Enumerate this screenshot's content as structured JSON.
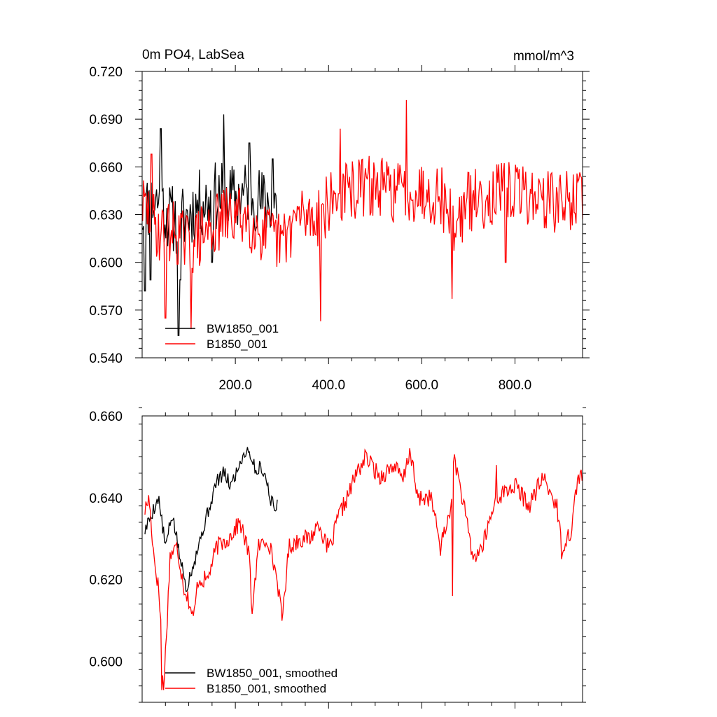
{
  "chart_data": [
    {
      "type": "line",
      "title": "0m PO4, LabSea",
      "units": "mmol/m^3",
      "xlim": [
        0,
        945
      ],
      "ylim": [
        0.54,
        0.72
      ],
      "x_ticks": [
        200,
        400,
        600,
        800
      ],
      "x_tick_labels": [
        "200.0",
        "400.0",
        "600.0",
        "800.0"
      ],
      "y_ticks": [
        0.54,
        0.57,
        0.6,
        0.63,
        0.66,
        0.69,
        0.72
      ],
      "y_tick_labels": [
        "0.540",
        "0.570",
        "0.600",
        "0.630",
        "0.660",
        "0.690",
        "0.720"
      ],
      "grid": false,
      "legend_position": "bottom-left",
      "series": [
        {
          "name": "BW1850_001",
          "color": "#000000",
          "generator": {
            "x_start": 1,
            "x_end": 290,
            "step": 2,
            "seed": 11,
            "noise": 0.022
          },
          "anchors": [
            [
              1,
              0.632
            ],
            [
              30,
              0.64
            ],
            [
              60,
              0.628
            ],
            [
              80,
              0.625
            ],
            [
              120,
              0.636
            ],
            [
              160,
              0.642
            ],
            [
              200,
              0.64
            ],
            [
              230,
              0.645
            ],
            [
              260,
              0.637
            ],
            [
              290,
              0.638
            ]
          ],
          "spikes": [
            [
              6,
              0.582
            ],
            [
              18,
              0.589
            ],
            [
              40,
              0.684
            ],
            [
              78,
              0.554
            ],
            [
              82,
              0.589
            ],
            [
              175,
              0.693
            ],
            [
              150,
              0.6
            ],
            [
              230,
              0.675
            ],
            [
              280,
              0.665
            ]
          ]
        },
        {
          "name": "B1850_001",
          "color": "#ff0000",
          "generator": {
            "x_start": 1,
            "x_end": 945,
            "step": 2,
            "seed": 29,
            "noise": 0.02
          },
          "anchors": [
            [
              1,
              0.636
            ],
            [
              15,
              0.63
            ],
            [
              40,
              0.618
            ],
            [
              70,
              0.62
            ],
            [
              100,
              0.61
            ],
            [
              140,
              0.62
            ],
            [
              180,
              0.628
            ],
            [
              220,
              0.63
            ],
            [
              260,
              0.618
            ],
            [
              300,
              0.612
            ],
            [
              330,
              0.628
            ],
            [
              380,
              0.63
            ],
            [
              420,
              0.642
            ],
            [
              480,
              0.648
            ],
            [
              540,
              0.645
            ],
            [
              600,
              0.645
            ],
            [
              640,
              0.643
            ],
            [
              670,
              0.623
            ],
            [
              700,
              0.638
            ],
            [
              760,
              0.643
            ],
            [
              800,
              0.645
            ],
            [
              860,
              0.64
            ],
            [
              900,
              0.637
            ],
            [
              945,
              0.642
            ]
          ],
          "spikes": [
            [
              20,
              0.668
            ],
            [
              50,
              0.565
            ],
            [
              105,
              0.558
            ],
            [
              383,
              0.563
            ],
            [
              425,
              0.684
            ],
            [
              567,
              0.702
            ],
            [
              665,
              0.577
            ],
            [
              780,
              0.6
            ]
          ]
        }
      ]
    },
    {
      "type": "line",
      "xlim": [
        0,
        945
      ],
      "ylim": [
        0.59,
        0.66
      ],
      "x_ticks": [
        200,
        400,
        600,
        800
      ],
      "y_ticks": [
        0.6,
        0.62,
        0.64,
        0.66
      ],
      "y_tick_labels": [
        "0.600",
        "0.620",
        "0.640",
        "0.660"
      ],
      "grid": false,
      "legend_position": "bottom-left",
      "series": [
        {
          "name": "BW1850_001, smoothed",
          "color": "#000000",
          "generator": {
            "x_start": 6,
            "x_end": 290,
            "step": 2,
            "seed": 5,
            "noise": 0.0018
          },
          "anchors": [
            [
              6,
              0.632
            ],
            [
              20,
              0.636
            ],
            [
              35,
              0.64
            ],
            [
              50,
              0.628
            ],
            [
              65,
              0.636
            ],
            [
              80,
              0.626
            ],
            [
              95,
              0.618
            ],
            [
              110,
              0.624
            ],
            [
              125,
              0.63
            ],
            [
              140,
              0.636
            ],
            [
              150,
              0.64
            ],
            [
              160,
              0.644
            ],
            [
              175,
              0.646
            ],
            [
              190,
              0.643
            ],
            [
              205,
              0.647
            ],
            [
              215,
              0.65
            ],
            [
              225,
              0.652
            ],
            [
              235,
              0.65
            ],
            [
              245,
              0.646
            ],
            [
              255,
              0.648
            ],
            [
              265,
              0.645
            ],
            [
              275,
              0.64
            ],
            [
              285,
              0.637
            ],
            [
              290,
              0.638
            ]
          ]
        },
        {
          "name": "B1850_001, smoothed",
          "color": "#ff0000",
          "generator": {
            "x_start": 6,
            "x_end": 945,
            "step": 2,
            "seed": 17,
            "noise": 0.0022
          },
          "anchors": [
            [
              6,
              0.637
            ],
            [
              15,
              0.64
            ],
            [
              25,
              0.626
            ],
            [
              35,
              0.618
            ],
            [
              40,
              0.61
            ],
            [
              45,
              0.592
            ],
            [
              52,
              0.606
            ],
            [
              60,
              0.626
            ],
            [
              75,
              0.628
            ],
            [
              90,
              0.618
            ],
            [
              100,
              0.615
            ],
            [
              110,
              0.61
            ],
            [
              120,
              0.62
            ],
            [
              140,
              0.62
            ],
            [
              160,
              0.628
            ],
            [
              185,
              0.63
            ],
            [
              210,
              0.634
            ],
            [
              230,
              0.626
            ],
            [
              235,
              0.612
            ],
            [
              250,
              0.628
            ],
            [
              270,
              0.63
            ],
            [
              290,
              0.62
            ],
            [
              300,
              0.61
            ],
            [
              315,
              0.628
            ],
            [
              340,
              0.63
            ],
            [
              360,
              0.63
            ],
            [
              380,
              0.634
            ],
            [
              395,
              0.628
            ],
            [
              405,
              0.628
            ],
            [
              420,
              0.635
            ],
            [
              440,
              0.64
            ],
            [
              460,
              0.646
            ],
            [
              480,
              0.65
            ],
            [
              510,
              0.645
            ],
            [
              540,
              0.648
            ],
            [
              560,
              0.644
            ],
            [
              575,
              0.652
            ],
            [
              590,
              0.64
            ],
            [
              620,
              0.64
            ],
            [
              640,
              0.628
            ],
            [
              660,
              0.636
            ],
            [
              670,
              0.65
            ],
            [
              690,
              0.638
            ],
            [
              710,
              0.625
            ],
            [
              730,
              0.628
            ],
            [
              760,
              0.64
            ],
            [
              800,
              0.643
            ],
            [
              830,
              0.638
            ],
            [
              860,
              0.645
            ],
            [
              890,
              0.638
            ],
            [
              900,
              0.628
            ],
            [
              920,
              0.632
            ],
            [
              935,
              0.645
            ],
            [
              945,
              0.646
            ]
          ],
          "spikes": [
            [
              42,
              0.593
            ],
            [
              666,
              0.616
            ],
            [
              900,
              0.625
            ],
            [
              760,
              0.648
            ]
          ]
        }
      ]
    }
  ]
}
